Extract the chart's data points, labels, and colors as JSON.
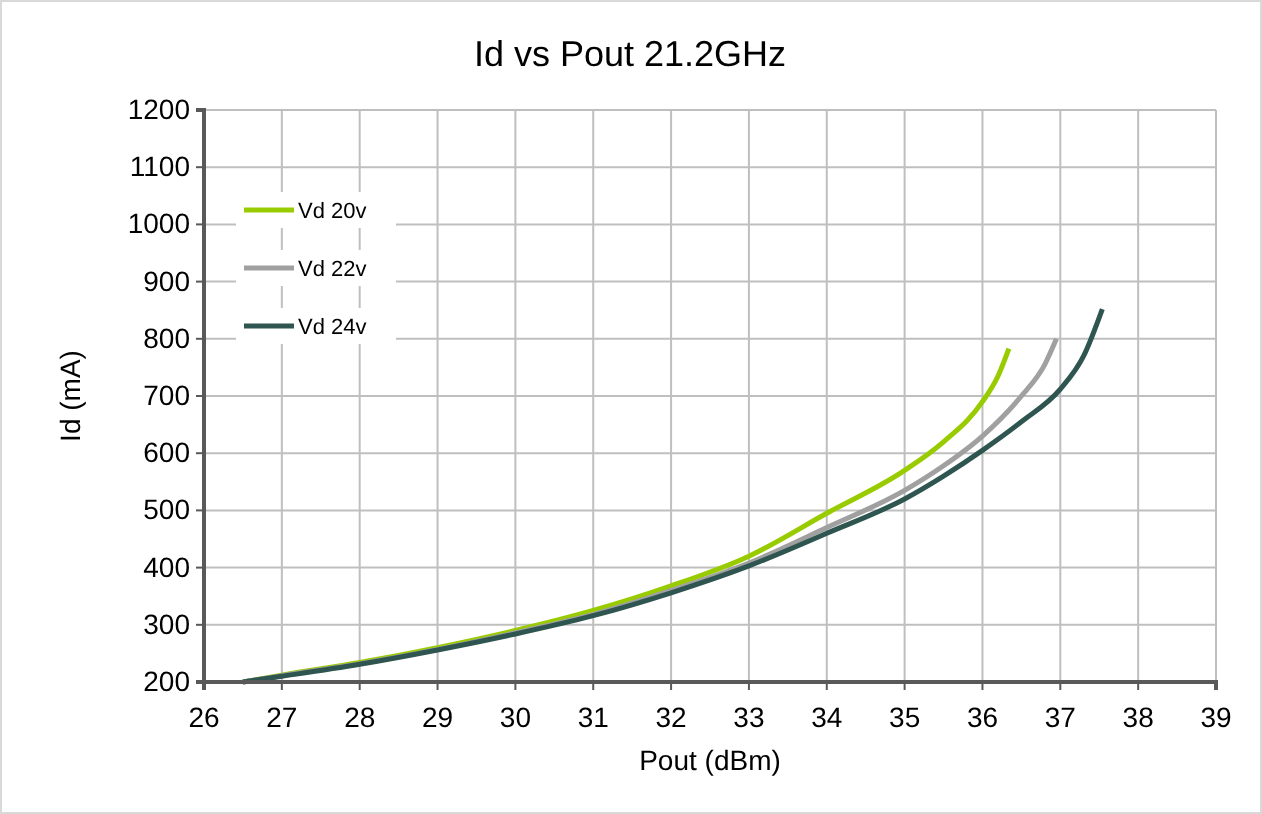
{
  "chart_data": {
    "type": "line",
    "title": "Id vs Pout 21.2GHz",
    "xlabel": "Pout (dBm)",
    "ylabel": "Id (mA)",
    "xlim": [
      26,
      39
    ],
    "xticks": [
      26,
      27,
      28,
      29,
      30,
      31,
      32,
      33,
      34,
      35,
      36,
      37,
      38,
      39
    ],
    "ylim": [
      200,
      1200
    ],
    "yticks": [
      200,
      300,
      400,
      500,
      600,
      700,
      800,
      900,
      1000,
      1100,
      1200
    ],
    "grid": true,
    "legend": "top left",
    "marker": "none",
    "line_style": "solid",
    "series": [
      {
        "name": "Vd 20v",
        "color": "#99cc00",
        "x": [
          26.5,
          27,
          28,
          29,
          30,
          31,
          32,
          33,
          34,
          35,
          35.5,
          36,
          36.2,
          36.34
        ],
        "values": [
          200,
          212,
          234,
          260,
          290,
          325,
          368,
          420,
          495,
          570,
          620,
          690,
          735,
          783
        ]
      },
      {
        "name": "Vd 22v",
        "color": "#a0a0a0",
        "x": [
          26.5,
          27,
          28,
          29,
          30,
          31,
          32,
          33,
          34,
          35,
          35.5,
          36,
          36.5,
          36.8,
          36.95
        ],
        "values": [
          200,
          211,
          232,
          257,
          286,
          318,
          360,
          408,
          470,
          535,
          578,
          630,
          700,
          755,
          800
        ]
      },
      {
        "name": "Vd 24v",
        "color": "#2f5550",
        "x": [
          26.5,
          27,
          28,
          29,
          30,
          31,
          32,
          33,
          34,
          35,
          35.5,
          36,
          36.5,
          37,
          37.3,
          37.54
        ],
        "values": [
          200,
          210,
          231,
          256,
          284,
          316,
          356,
          403,
          460,
          520,
          560,
          605,
          655,
          712,
          770,
          852
        ]
      }
    ]
  }
}
